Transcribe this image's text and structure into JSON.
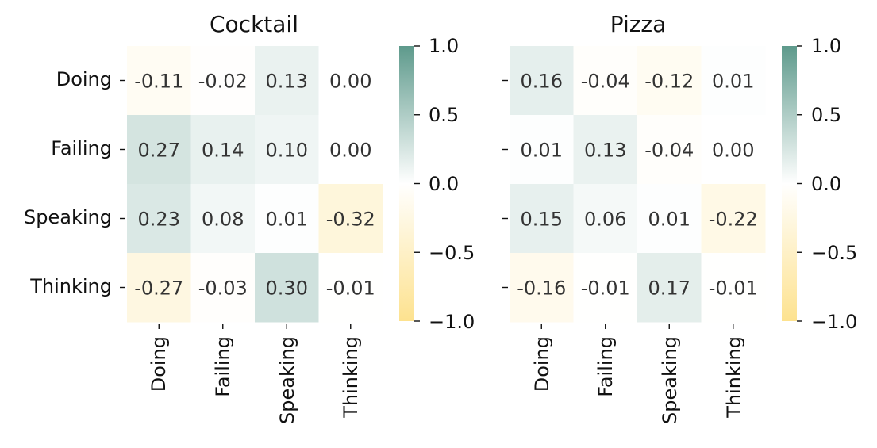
{
  "chart_data": [
    {
      "type": "heatmap",
      "title": "Cocktail",
      "rows": [
        "Doing",
        "Failing",
        "Speaking",
        "Thinking"
      ],
      "cols": [
        "Doing",
        "Failing",
        "Speaking",
        "Thinking"
      ],
      "values": [
        [
          -0.11,
          -0.02,
          0.13,
          0.0
        ],
        [
          0.27,
          0.14,
          0.1,
          0.0
        ],
        [
          0.23,
          0.08,
          0.01,
          -0.32
        ],
        [
          -0.27,
          -0.03,
          0.3,
          -0.01
        ]
      ],
      "value_labels": [
        [
          "-0.11",
          "-0.02",
          "0.13",
          "0.00"
        ],
        [
          "0.27",
          "0.14",
          "0.10",
          "0.00"
        ],
        [
          "0.23",
          "0.08",
          "0.01",
          "-0.32"
        ],
        [
          "-0.27",
          "-0.03",
          "0.30",
          "-0.01"
        ]
      ],
      "vmin": -1.0,
      "vmax": 1.0,
      "colorbar_ticks": [
        "1.0",
        "0.5",
        "0.0",
        "−0.5",
        "−1.0"
      ]
    },
    {
      "type": "heatmap",
      "title": "Pizza",
      "rows": [
        "Doing",
        "Failing",
        "Speaking",
        "Thinking"
      ],
      "cols": [
        "Doing",
        "Failing",
        "Speaking",
        "Thinking"
      ],
      "values": [
        [
          0.16,
          -0.04,
          -0.12,
          0.01
        ],
        [
          0.01,
          0.13,
          -0.04,
          0.0
        ],
        [
          0.15,
          0.06,
          0.01,
          -0.22
        ],
        [
          -0.16,
          -0.01,
          0.17,
          -0.01
        ]
      ],
      "value_labels": [
        [
          "0.16",
          "-0.04",
          "-0.12",
          "0.01"
        ],
        [
          "0.01",
          "0.13",
          "-0.04",
          "0.00"
        ],
        [
          "0.15",
          "0.06",
          "0.01",
          "-0.22"
        ],
        [
          "-0.16",
          "-0.01",
          "0.17",
          "-0.01"
        ]
      ],
      "vmin": -1.0,
      "vmax": 1.0,
      "colorbar_ticks": [
        "1.0",
        "0.5",
        "0.0",
        "−0.5",
        "−1.0"
      ]
    }
  ],
  "colors": {
    "positive": "#5e9a8c",
    "neutral": "#ffffff",
    "negative": "#fde28f"
  }
}
